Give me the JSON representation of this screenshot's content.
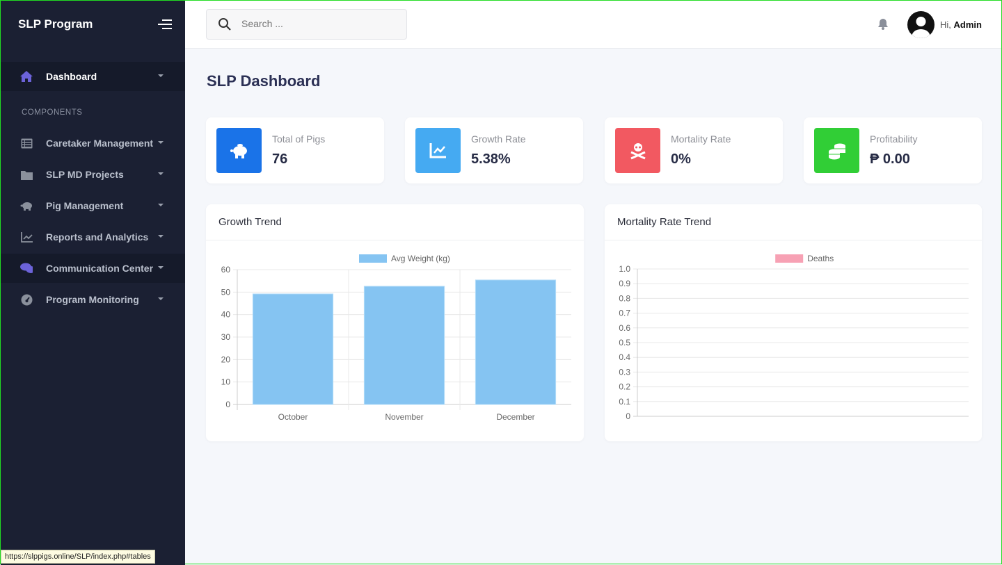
{
  "sidebar": {
    "brand": "SLP Program",
    "section": "COMPONENTS",
    "items": [
      {
        "label": "Dashboard",
        "icon": "home-icon"
      },
      {
        "label": "Caretaker Management",
        "icon": "table-icon"
      },
      {
        "label": "SLP MD Projects",
        "icon": "folder-icon"
      },
      {
        "label": "Pig Management",
        "icon": "piggy-bank-icon"
      },
      {
        "label": "Reports and Analytics",
        "icon": "chart-line-icon"
      },
      {
        "label": "Communication Center",
        "icon": "comments-icon"
      },
      {
        "label": "Program Monitoring",
        "icon": "gauge-icon"
      }
    ]
  },
  "topbar": {
    "search_placeholder": "Search ...",
    "greeting": "Hi,",
    "user": "Admin"
  },
  "page_title": "SLP Dashboard",
  "stats": [
    {
      "title": "Total of Pigs",
      "value": "76",
      "color": "#1a73e8"
    },
    {
      "title": "Growth Rate",
      "value": "5.38%",
      "color": "#45aaf2"
    },
    {
      "title": "Mortality Rate",
      "value": "0%",
      "color": "#f25961"
    },
    {
      "title": "Profitability",
      "value": "₱ 0.00",
      "color": "#31ce36"
    }
  ],
  "chart_data": [
    {
      "type": "bar",
      "title": "Growth Trend",
      "categories": [
        "October",
        "November",
        "December"
      ],
      "series": [
        {
          "name": "Avg Weight (kg)",
          "values": [
            49.2,
            52.6,
            55.4
          ],
          "color": "#85c4f2"
        }
      ],
      "ylim": [
        0,
        60
      ],
      "yticks": [
        0,
        10,
        20,
        30,
        40,
        50,
        60
      ],
      "legend": "top",
      "grid": true
    },
    {
      "type": "line",
      "title": "Mortality Rate Trend",
      "categories": [],
      "series": [
        {
          "name": "Deaths",
          "values": [],
          "color": "#f7a1b4"
        }
      ],
      "ylim": [
        0,
        1
      ],
      "yticks": [
        "0",
        "0.1",
        "0.2",
        "0.3",
        "0.4",
        "0.5",
        "0.6",
        "0.7",
        "0.8",
        "0.9",
        "1.0"
      ],
      "legend": "top",
      "grid": true
    }
  ],
  "status_url": "https://slppigs.online/SLP/index.php#tables"
}
